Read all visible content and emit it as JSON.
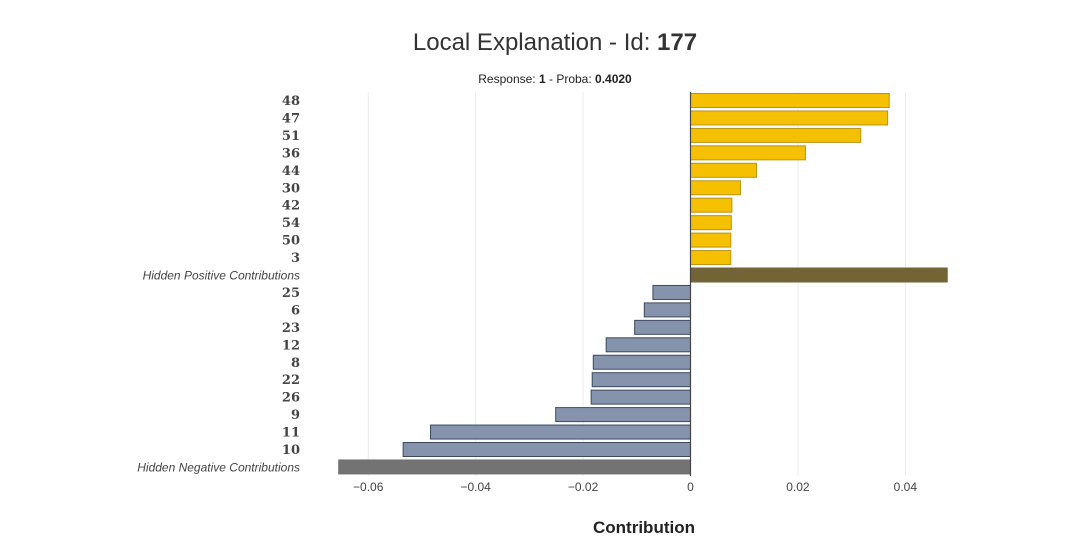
{
  "title": {
    "prefix": "Local Explanation - Id: ",
    "id": "177"
  },
  "subtitle": {
    "response_label": "Response: ",
    "response": "1",
    "proba_label": " - Proba: ",
    "proba": "0.4020"
  },
  "colors": {
    "positive": "#f5c000",
    "positive_border": "#b8941a",
    "hidden_positive": "#726437",
    "negative": "#8593ad",
    "negative_border": "#3d4a5e",
    "hidden_negative": "#737373",
    "grid": "#ebebeb",
    "zero_line": "#444444"
  },
  "chart_data": {
    "type": "bar",
    "orientation": "horizontal",
    "xlabel": "Contribution",
    "xlim": [
      -0.066,
      0.0485
    ],
    "xticks": [
      -0.06,
      -0.04,
      -0.02,
      0,
      0.02,
      0.04
    ],
    "xtick_labels": [
      "−0.06",
      "−0.04",
      "−0.02",
      "0",
      "0.02",
      "0.04"
    ],
    "grid": true,
    "categories": [
      "48",
      "47",
      "51",
      "36",
      "44",
      "30",
      "42",
      "54",
      "50",
      "3",
      "Hidden Positive Contributions",
      "25",
      "6",
      "23",
      "12",
      "8",
      "22",
      "26",
      "9",
      "11",
      "10",
      "Hidden Negative Contributions"
    ],
    "values": [
      0.037,
      0.0367,
      0.0317,
      0.0214,
      0.0123,
      0.0093,
      0.0077,
      0.0076,
      0.0075,
      0.0075,
      0.0478,
      -0.007,
      -0.0086,
      -0.0104,
      -0.0157,
      -0.0181,
      -0.0183,
      -0.0185,
      -0.0251,
      -0.0484,
      -0.0535,
      -0.0655
    ],
    "kinds": [
      "pos",
      "pos",
      "pos",
      "pos",
      "pos",
      "pos",
      "pos",
      "pos",
      "pos",
      "pos",
      "hidden_pos",
      "neg",
      "neg",
      "neg",
      "neg",
      "neg",
      "neg",
      "neg",
      "neg",
      "neg",
      "neg",
      "hidden_neg"
    ]
  }
}
